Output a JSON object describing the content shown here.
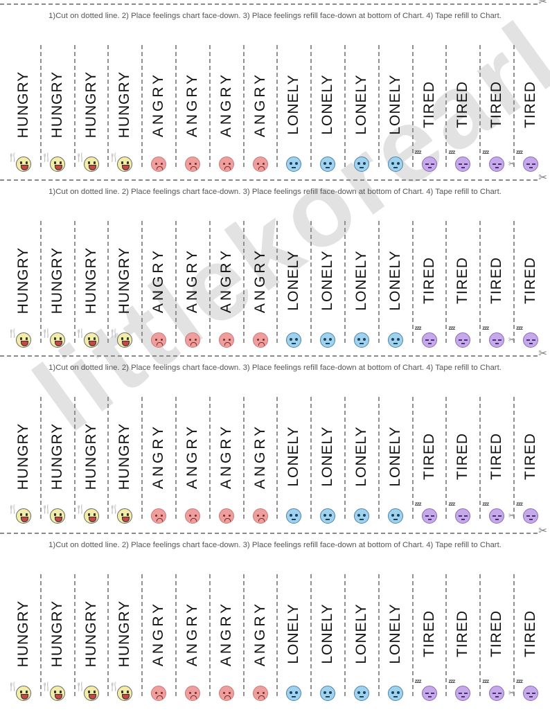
{
  "watermark": "littlekorearl",
  "instructions": "1)Cut on dotted line. 2) Place feelings chart face-down. 3) Place feelings refill face-down at bottom of Chart. 4) Tape refill to Chart.",
  "icons": {
    "scissors": "✂",
    "utensils": "🍴",
    "zzz": "zzz"
  },
  "colors": {
    "hungry": "#f2eea8",
    "angry": "#ef9e9e",
    "lonely": "#9fd2ee",
    "tired": "#c6a9ea"
  },
  "sheets": [
    {
      "strips": [
        {
          "label": "HUNGRY",
          "face": "hungry"
        },
        {
          "label": "HUNGRY",
          "face": "hungry"
        },
        {
          "label": "HUNGRY",
          "face": "hungry"
        },
        {
          "label": "HUNGRY",
          "face": "hungry"
        },
        {
          "label": "ANGRY",
          "face": "angry"
        },
        {
          "label": "ANGRY",
          "face": "angry"
        },
        {
          "label": "ANGRY",
          "face": "angry"
        },
        {
          "label": "ANGRY",
          "face": "angry"
        },
        {
          "label": "LONELY",
          "face": "lonely"
        },
        {
          "label": "LONELY",
          "face": "lonely"
        },
        {
          "label": "LONELY",
          "face": "lonely"
        },
        {
          "label": "LONELY",
          "face": "lonely"
        },
        {
          "label": "TIRED",
          "face": "tired"
        },
        {
          "label": "TIRED",
          "face": "tired"
        },
        {
          "label": "TIRED",
          "face": "tired"
        },
        {
          "label": "TIRED",
          "face": "tired"
        }
      ]
    },
    {
      "strips": [
        {
          "label": "HUNGRY",
          "face": "hungry"
        },
        {
          "label": "HUNGRY",
          "face": "hungry"
        },
        {
          "label": "HUNGRY",
          "face": "hungry"
        },
        {
          "label": "HUNGRY",
          "face": "hungry"
        },
        {
          "label": "ANGRY",
          "face": "angry"
        },
        {
          "label": "ANGRY",
          "face": "angry"
        },
        {
          "label": "ANGRY",
          "face": "angry"
        },
        {
          "label": "ANGRY",
          "face": "angry"
        },
        {
          "label": "LONELY",
          "face": "lonely"
        },
        {
          "label": "LONELY",
          "face": "lonely"
        },
        {
          "label": "LONELY",
          "face": "lonely"
        },
        {
          "label": "LONELY",
          "face": "lonely"
        },
        {
          "label": "TIRED",
          "face": "tired"
        },
        {
          "label": "TIRED",
          "face": "tired"
        },
        {
          "label": "TIRED",
          "face": "tired"
        },
        {
          "label": "TIRED",
          "face": "tired"
        }
      ]
    },
    {
      "strips": [
        {
          "label": "HUNGRY",
          "face": "hungry"
        },
        {
          "label": "HUNGRY",
          "face": "hungry"
        },
        {
          "label": "HUNGRY",
          "face": "hungry"
        },
        {
          "label": "HUNGRY",
          "face": "hungry"
        },
        {
          "label": "ANGRY",
          "face": "angry"
        },
        {
          "label": "ANGRY",
          "face": "angry"
        },
        {
          "label": "ANGRY",
          "face": "angry"
        },
        {
          "label": "ANGRY",
          "face": "angry"
        },
        {
          "label": "LONELY",
          "face": "lonely"
        },
        {
          "label": "LONELY",
          "face": "lonely"
        },
        {
          "label": "LONELY",
          "face": "lonely"
        },
        {
          "label": "LONELY",
          "face": "lonely"
        },
        {
          "label": "TIRED",
          "face": "tired"
        },
        {
          "label": "TIRED",
          "face": "tired"
        },
        {
          "label": "TIRED",
          "face": "tired"
        },
        {
          "label": "TIRED",
          "face": "tired"
        }
      ]
    },
    {
      "strips": [
        {
          "label": "HUNGRY",
          "face": "hungry"
        },
        {
          "label": "HUNGRY",
          "face": "hungry"
        },
        {
          "label": "HUNGRY",
          "face": "hungry"
        },
        {
          "label": "HUNGRY",
          "face": "hungry"
        },
        {
          "label": "ANGRY",
          "face": "angry"
        },
        {
          "label": "ANGRY",
          "face": "angry"
        },
        {
          "label": "ANGRY",
          "face": "angry"
        },
        {
          "label": "ANGRY",
          "face": "angry"
        },
        {
          "label": "LONELY",
          "face": "lonely"
        },
        {
          "label": "LONELY",
          "face": "lonely"
        },
        {
          "label": "LONELY",
          "face": "lonely"
        },
        {
          "label": "LONELY",
          "face": "lonely"
        },
        {
          "label": "TIRED",
          "face": "tired"
        },
        {
          "label": "TIRED",
          "face": "tired"
        },
        {
          "label": "TIRED",
          "face": "tired"
        },
        {
          "label": "TIRED",
          "face": "tired"
        }
      ]
    }
  ]
}
